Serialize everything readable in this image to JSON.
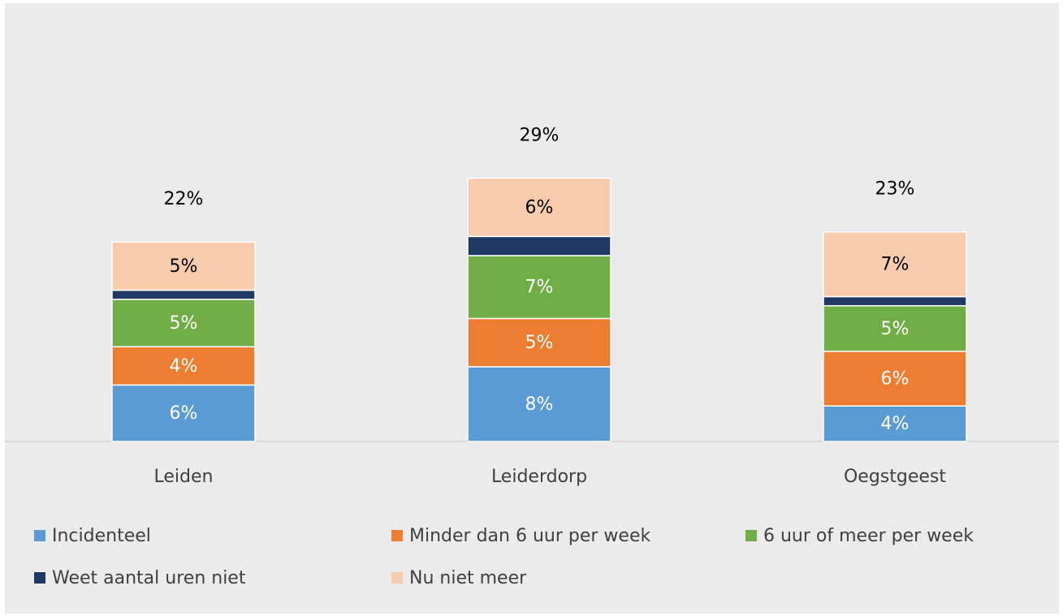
{
  "chart_data": {
    "type": "stacked-bar",
    "categories": [
      "Leiden",
      "Leiderdorp",
      "Oegstgeest"
    ],
    "series": [
      {
        "name": "Incidenteel",
        "color": "#5b9bd5",
        "values": [
          6.2,
          8.2,
          3.9
        ],
        "value_labels": [
          "6%",
          "8%",
          "4%"
        ]
      },
      {
        "name": "Minder dan 6 uur per week",
        "color": "#ed7d31",
        "values": [
          4.2,
          5.3,
          6.0
        ],
        "value_labels": [
          "4%",
          "5%",
          "6%"
        ]
      },
      {
        "name": "6 uur of meer per week",
        "color": "#70ad47",
        "values": [
          5.2,
          6.9,
          5.0
        ],
        "value_labels": [
          "5%",
          "7%",
          "5%"
        ]
      },
      {
        "name": "Weet aantal uren niet",
        "color": "#203864",
        "values": [
          1.0,
          2.1,
          1.0
        ]
      },
      {
        "name": "Nu niet meer",
        "color": "#f8cbad",
        "values": [
          5.3,
          6.4,
          7.1
        ],
        "value_labels": [
          "5%",
          "6%",
          "7%"
        ]
      }
    ],
    "totals": [
      22,
      29,
      23
    ],
    "total_labels": [
      "22%",
      "29%",
      "23%"
    ],
    "ylim": [
      0,
      48
    ],
    "legend": "bottom"
  }
}
